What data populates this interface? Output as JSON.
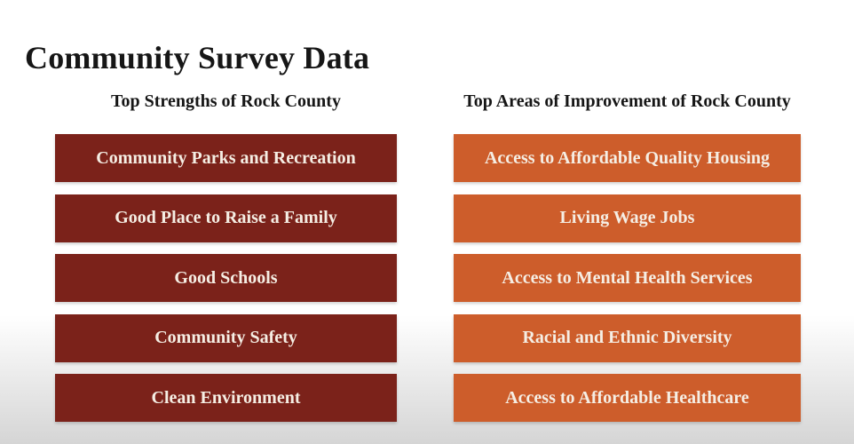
{
  "slide": {
    "title": "Community Survey Data",
    "columns": [
      {
        "header": "Top Strengths of Rock County",
        "items": [
          "Community Parks and Recreation",
          "Good Place to Raise a Family",
          "Good Schools",
          "Community Safety",
          "Clean Environment"
        ]
      },
      {
        "header": "Top Areas of Improvement of Rock County",
        "items": [
          "Access to Affordable Quality Housing",
          "Living Wage Jobs",
          "Access to Mental Health Services",
          "Racial and Ethnic Diversity",
          "Access to Affordable Healthcare"
        ]
      }
    ]
  },
  "colors": {
    "maroon": "#7B221A",
    "orange": "#CD5D2B",
    "bar_text": "#F5EEE4",
    "heading_text": "#161616",
    "background_top": "#FFFFFF",
    "background_bottom": "#D5D5D5"
  }
}
